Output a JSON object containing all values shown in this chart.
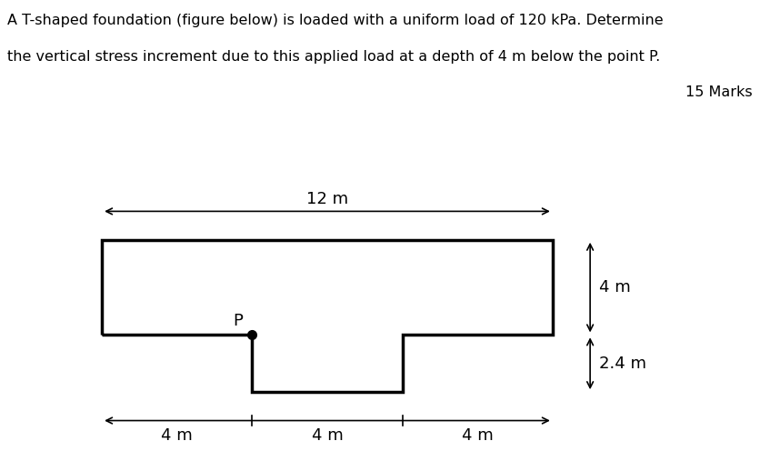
{
  "title_line1": "A T-shaped foundation (figure below) is loaded with a uniform load of 120 kPa. Determine",
  "title_line2": "the vertical stress increment due to this applied load at a depth of 4 m below the point P.",
  "marks": "15 Marks",
  "bg_color": "#ffffff",
  "shape_color": "#000000",
  "line_width": 2.5,
  "font_size_title": 11.5,
  "font_size_marks": 11.5,
  "font_size_labels": 13,
  "dim_12m_label": "12 m",
  "dim_4m_label": "4 m",
  "dim_24m_label": "2.4 m",
  "dim_bot1": "4 m",
  "dim_bot2": "4 m",
  "dim_bot3": "4 m",
  "point_label": "P",
  "shape_x": [
    0,
    0,
    12,
    12,
    8,
    8,
    4,
    4,
    0
  ],
  "shape_y": [
    0,
    4,
    4,
    0,
    0,
    -2.4,
    -2.4,
    0,
    0
  ],
  "xlim": [
    -1.5,
    15.5
  ],
  "ylim": [
    -4.5,
    6.5
  ]
}
